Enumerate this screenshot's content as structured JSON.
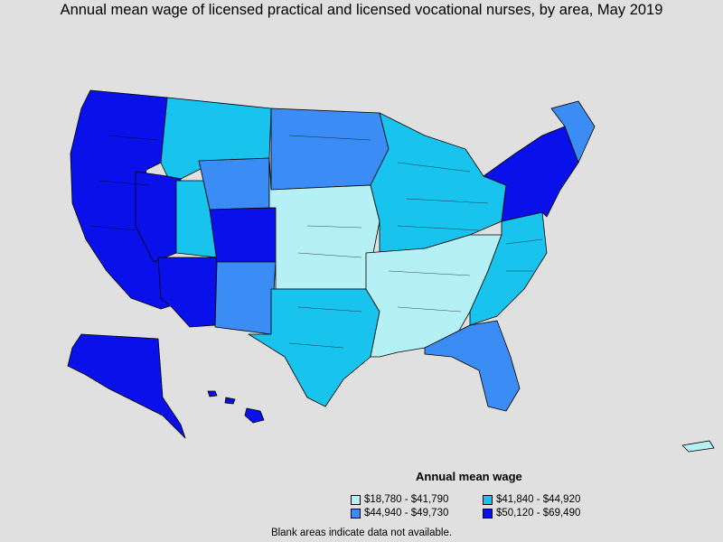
{
  "title": "Annual mean wage of licensed practical and licensed vocational nurses, by area, May 2019",
  "legend": {
    "title": "Annual mean wage",
    "items": [
      {
        "label": "$18,780 - $41,790",
        "color": "#b5f0f5"
      },
      {
        "label": "$41,840 - $44,920",
        "color": "#18c4ee"
      },
      {
        "label": "$44,940 - $49,730",
        "color": "#3b8cf5"
      },
      {
        "label": "$50,120 - $69,490",
        "color": "#0a10ea"
      }
    ]
  },
  "note": "Blank areas indicate data not available.",
  "colors": {
    "background": "#e0e0e0",
    "tier1": "#b5f0f5",
    "tier2": "#18c4ee",
    "tier3": "#3b8cf5",
    "tier4": "#0a10ea"
  },
  "regions": [
    {
      "name": "pacific-coast",
      "tier": 4
    },
    {
      "name": "nevada",
      "tier": 4
    },
    {
      "name": "arizona",
      "tier": 4
    },
    {
      "name": "mountain-north",
      "tier": 2
    },
    {
      "name": "wyoming",
      "tier": 3
    },
    {
      "name": "colorado",
      "tier": 4
    },
    {
      "name": "new-mexico",
      "tier": 3
    },
    {
      "name": "northern-plains",
      "tier": 3
    },
    {
      "name": "central-plains",
      "tier": 1
    },
    {
      "name": "texas",
      "tier": 2
    },
    {
      "name": "midwest",
      "tier": 2
    },
    {
      "name": "south",
      "tier": 1
    },
    {
      "name": "southeast",
      "tier": 2
    },
    {
      "name": "florida",
      "tier": 3
    },
    {
      "name": "northeast",
      "tier": 4
    },
    {
      "name": "maine",
      "tier": 3
    },
    {
      "name": "alaska",
      "tier": 4
    },
    {
      "name": "hawaii",
      "tier": 4
    },
    {
      "name": "puerto-rico",
      "tier": 1
    }
  ]
}
